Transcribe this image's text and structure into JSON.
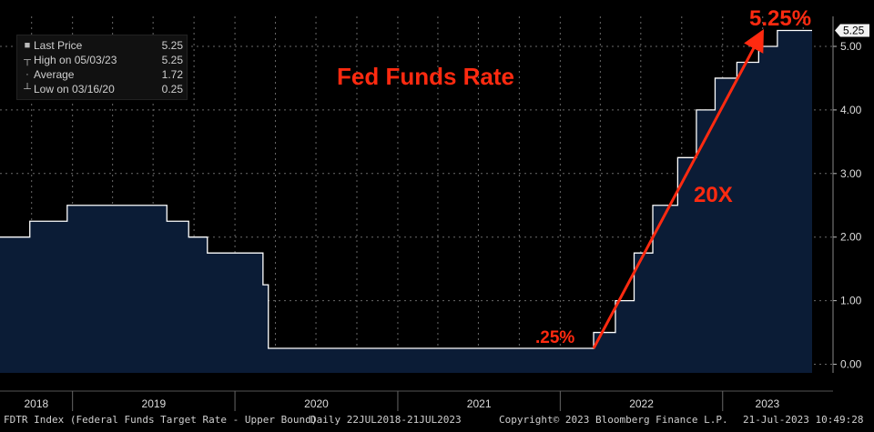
{
  "chart_data": {
    "type": "area",
    "title": "Fed Funds Rate",
    "x_range": [
      "2018-07-22",
      "2023-07-21"
    ],
    "ylim": [
      0,
      5.5
    ],
    "y_ticks": [
      "0.00",
      "1.00",
      "2.00",
      "3.00",
      "4.00",
      "5.00"
    ],
    "x_ticks": [
      "2018",
      "2019",
      "2020",
      "2021",
      "2022",
      "2023"
    ],
    "last_value_label": "5.25",
    "series": [
      {
        "name": "Last Price",
        "points": [
          [
            "2018-07-22",
            2.0
          ],
          [
            "2018-09-27",
            2.25
          ],
          [
            "2018-12-20",
            2.5
          ],
          [
            "2019-08-01",
            2.25
          ],
          [
            "2019-09-19",
            2.0
          ],
          [
            "2019-10-31",
            1.75
          ],
          [
            "2020-03-04",
            1.25
          ],
          [
            "2020-03-16",
            0.25
          ],
          [
            "2022-03-17",
            0.5
          ],
          [
            "2022-05-05",
            1.0
          ],
          [
            "2022-06-16",
            1.75
          ],
          [
            "2022-07-28",
            2.5
          ],
          [
            "2022-09-22",
            3.25
          ],
          [
            "2022-11-03",
            4.0
          ],
          [
            "2022-12-15",
            4.5
          ],
          [
            "2023-02-02",
            4.75
          ],
          [
            "2023-03-23",
            5.0
          ],
          [
            "2023-05-04",
            5.25
          ],
          [
            "2023-07-21",
            5.25
          ]
        ]
      }
    ],
    "grid": true,
    "legend_position": "top-left"
  },
  "legend": {
    "rows": [
      {
        "icon": "square-icon",
        "label": "Last Price",
        "value": "5.25"
      },
      {
        "icon": "high-marker-icon",
        "label": "High on 05/03/23",
        "value": "5.25"
      },
      {
        "icon": "average-marker-icon",
        "label": "Average",
        "value": "1.72"
      },
      {
        "icon": "low-marker-icon",
        "label": "Low on 03/16/20",
        "value": "0.25"
      }
    ]
  },
  "annotations": {
    "start": ".25%",
    "end": "5.25%",
    "multiplier": "20X"
  },
  "footer": {
    "left": "FDTR Index (Federal Funds Target Rate - Upper Bound)",
    "range": "Daily 22JUL2018-21JUL2023",
    "copyright": "Copyright© 2023 Bloomberg Finance L.P.",
    "timestamp": "21-Jul-2023 10:49:28"
  },
  "colors": {
    "background": "#000000",
    "area_fill": "#0b1c36",
    "line": "#ffffff",
    "annotation": "#ff2a10",
    "grid": "#6a6a6a",
    "text": "#dcdcdc"
  }
}
